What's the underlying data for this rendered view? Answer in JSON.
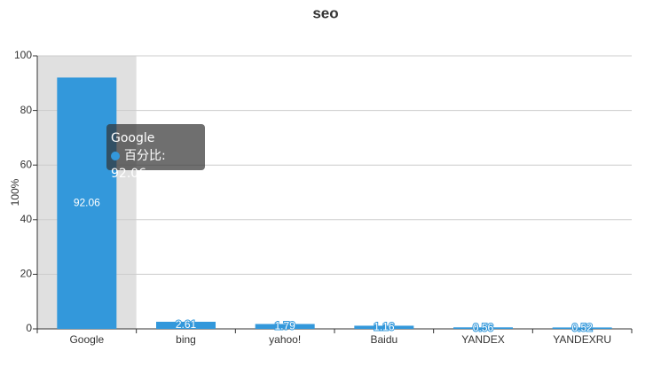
{
  "chart_data": {
    "type": "bar",
    "title": "seo",
    "y_label": "100%",
    "categories": [
      "Google",
      "bing",
      "yahoo!",
      "Baidu",
      "YANDEX",
      "YANDEXRU"
    ],
    "series": [
      {
        "name": "百分比",
        "color": "#3398db",
        "values": [
          92.06,
          2.61,
          1.79,
          1.16,
          0.56,
          0.52
        ]
      }
    ],
    "ylim": [
      0,
      100
    ],
    "yticks": [
      0,
      20,
      40,
      60,
      80,
      100
    ],
    "grid": true
  }
}
